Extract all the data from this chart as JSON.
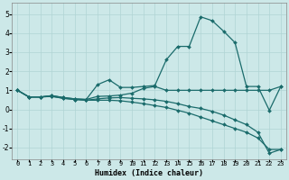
{
  "title": "",
  "xlabel": "Humidex (Indice chaleur)",
  "xlim": [
    -0.5,
    23.5
  ],
  "ylim": [
    -2.6,
    5.6
  ],
  "yticks": [
    -2,
    -1,
    0,
    1,
    2,
    3,
    4,
    5
  ],
  "xticks": [
    0,
    1,
    2,
    3,
    4,
    5,
    6,
    7,
    8,
    9,
    10,
    11,
    12,
    13,
    14,
    15,
    16,
    17,
    18,
    19,
    20,
    21,
    22,
    23
  ],
  "bg_color": "#cce8e8",
  "line_color": "#1a6b6b",
  "grid_color": "#b0d4d4",
  "lines": [
    {
      "x": [
        0,
        1,
        2,
        3,
        4,
        5,
        6,
        7,
        8,
        9,
        10,
        11,
        12,
        13,
        14,
        15,
        16,
        17,
        18,
        19,
        20,
        21,
        22,
        23
      ],
      "y": [
        1.0,
        0.65,
        0.65,
        0.72,
        0.62,
        0.55,
        0.52,
        1.3,
        1.55,
        1.15,
        1.15,
        1.2,
        1.25,
        2.6,
        3.3,
        3.3,
        4.85,
        4.65,
        4.1,
        3.5,
        1.2,
        1.2,
        -0.05,
        1.2
      ]
    },
    {
      "x": [
        0,
        1,
        2,
        3,
        4,
        5,
        6,
        7,
        8,
        9,
        10,
        11,
        12,
        13,
        14,
        15,
        16,
        17,
        18,
        19,
        20,
        21,
        22,
        23
      ],
      "y": [
        1.0,
        0.65,
        0.65,
        0.72,
        0.62,
        0.55,
        0.52,
        0.68,
        0.7,
        0.75,
        0.85,
        1.1,
        1.2,
        1.0,
        1.0,
        1.0,
        1.0,
        1.0,
        1.0,
        1.0,
        1.0,
        1.0,
        1.0,
        1.2
      ]
    },
    {
      "x": [
        0,
        1,
        2,
        3,
        4,
        5,
        6,
        7,
        8,
        9,
        10,
        11,
        12,
        13,
        14,
        15,
        16,
        17,
        18,
        19,
        20,
        21,
        22,
        23
      ],
      "y": [
        1.0,
        0.65,
        0.65,
        0.68,
        0.58,
        0.52,
        0.48,
        0.55,
        0.6,
        0.62,
        0.58,
        0.55,
        0.5,
        0.42,
        0.3,
        0.15,
        0.05,
        -0.1,
        -0.3,
        -0.55,
        -0.8,
        -1.2,
        -2.3,
        -2.1
      ]
    },
    {
      "x": [
        0,
        1,
        2,
        3,
        4,
        5,
        6,
        7,
        8,
        9,
        10,
        11,
        12,
        13,
        14,
        15,
        16,
        17,
        18,
        19,
        20,
        21,
        22,
        23
      ],
      "y": [
        1.0,
        0.65,
        0.65,
        0.68,
        0.58,
        0.52,
        0.48,
        0.48,
        0.48,
        0.45,
        0.38,
        0.3,
        0.2,
        0.1,
        -0.05,
        -0.2,
        -0.4,
        -0.6,
        -0.8,
        -1.0,
        -1.2,
        -1.5,
        -2.1,
        -2.1
      ]
    }
  ]
}
